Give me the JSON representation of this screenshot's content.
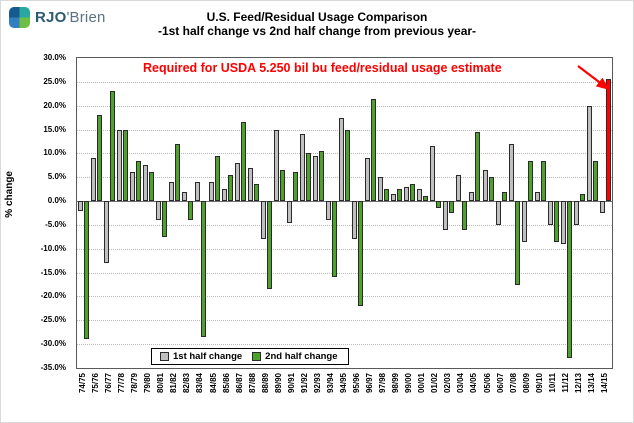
{
  "logo": {
    "text_bold": "RJO",
    "text_rest": "'Brien"
  },
  "annotation": {
    "text": "Required for USDA 5.250 bil bu feed/residual usage estimate",
    "color": "#FF0000"
  },
  "legend": [
    {
      "label": "1st half change",
      "color": "#C0C0C0"
    },
    {
      "label": "2nd half change",
      "color": "#4CA22C"
    }
  ],
  "chart_data": {
    "type": "bar",
    "title": "U.S. Feed/Residual Usage Comparison",
    "subtitle": "-1st half change vs 2nd half change from previous year-",
    "ylabel": "% change",
    "ylim": [
      -35,
      30
    ],
    "ytick_step": 5,
    "grid": true,
    "legend_position": "bottom-inside",
    "categories": [
      "74/75",
      "75/76",
      "76/77",
      "77/78",
      "78/79",
      "79/80",
      "80/81",
      "81/82",
      "82/83",
      "83/84",
      "84/85",
      "85/86",
      "86/87",
      "87/88",
      "88/89",
      "89/90",
      "90/91",
      "91/92",
      "92/93",
      "93/94",
      "94/95",
      "95/96",
      "96/97",
      "97/98",
      "98/99",
      "99/00",
      "00/01",
      "01/02",
      "02/03",
      "03/04",
      "04/05",
      "05/06",
      "06/07",
      "07/08",
      "08/09",
      "09/10",
      "10/11",
      "11/12",
      "12/13",
      "13/14",
      "14/15"
    ],
    "series": [
      {
        "name": "1st half change",
        "color": "#C0C0C0",
        "values": [
          -2,
          9,
          -13,
          15,
          6,
          7.5,
          -4,
          4,
          2,
          4,
          4,
          2.5,
          8,
          7,
          -8,
          15,
          -4.5,
          14,
          9.5,
          -4,
          17.5,
          -8,
          9,
          5,
          1.5,
          3,
          2.5,
          11.5,
          -6,
          5.5,
          2,
          6.5,
          -5,
          12,
          -8.5,
          2,
          -5,
          -9,
          -5,
          20,
          -2.5
        ]
      },
      {
        "name": "2nd half change",
        "color": "#4CA22C",
        "values": [
          -29,
          18,
          23,
          15,
          8.5,
          6,
          -7.5,
          12,
          -4,
          -28.5,
          9.5,
          5.5,
          16.5,
          3.5,
          -18.5,
          6.5,
          6,
          10,
          10.5,
          -16,
          15,
          -22,
          21.5,
          2.5,
          2.5,
          3.5,
          1,
          -1.5,
          -2.5,
          -6,
          14.5,
          5,
          2,
          -17.5,
          8.5,
          8.5,
          -8.5,
          -33,
          1.5,
          8.5,
          null
        ]
      }
    ],
    "required_bar": {
      "category": "14/15",
      "value": 25.5,
      "color": "#FF0000"
    }
  }
}
